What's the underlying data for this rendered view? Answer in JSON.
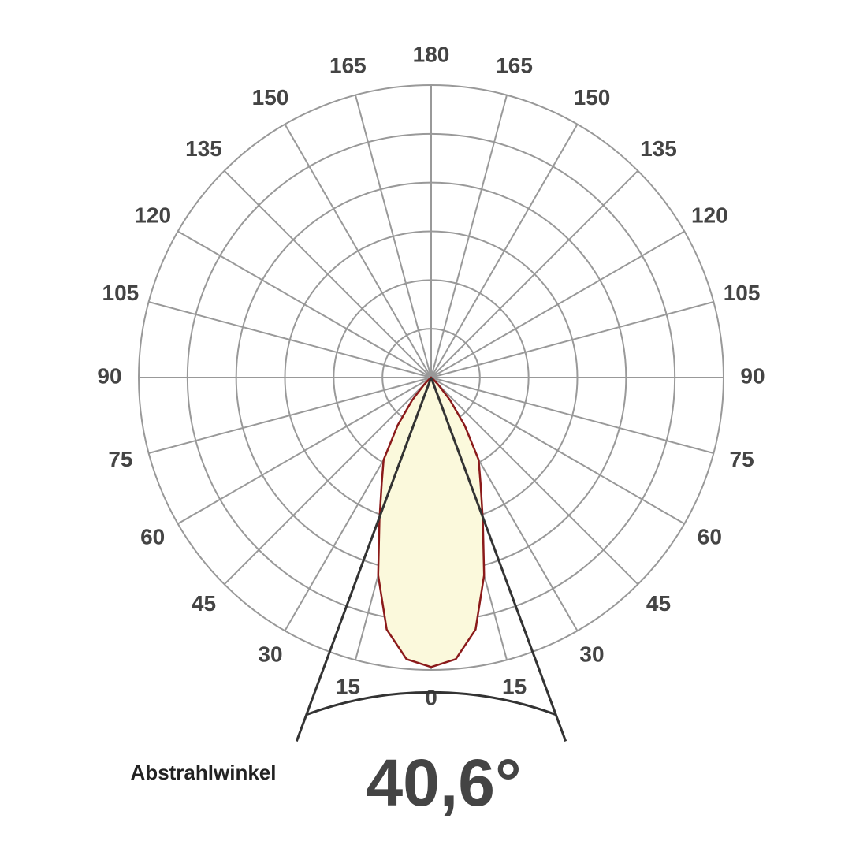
{
  "chart_data": {
    "type": "polar",
    "angle_ticks_left": [
      0,
      15,
      30,
      45,
      60,
      75,
      90,
      105,
      120,
      135,
      150,
      165,
      180
    ],
    "angle_ticks_right": [
      15,
      30,
      45,
      60,
      75,
      90,
      105,
      120,
      135,
      150,
      165
    ],
    "rlim": [
      0,
      6
    ],
    "rticks": [
      1,
      2,
      3,
      4,
      5,
      6
    ],
    "grid": true,
    "series": [
      {
        "color": "#8b1a1a",
        "fill": "#fbf9dc",
        "x": [
          -90,
          -50,
          -45,
          -40,
          -35,
          -30,
          -25,
          -20,
          -15,
          -10,
          -5,
          0,
          5,
          10,
          15,
          20,
          25,
          30,
          35,
          40,
          45,
          50,
          90
        ],
        "values": [
          0,
          0.05,
          0.2,
          0.6,
          1.2,
          1.95,
          2.4,
          3.1,
          4.2,
          5.25,
          5.8,
          5.94,
          5.8,
          5.25,
          4.2,
          3.1,
          2.4,
          1.95,
          1.2,
          0.6,
          0.2,
          0.05,
          0
        ]
      }
    ],
    "beam_label": "Abstrahlwinkel",
    "beam_angle": 40.6,
    "beam_angle_label": "40,6°"
  }
}
